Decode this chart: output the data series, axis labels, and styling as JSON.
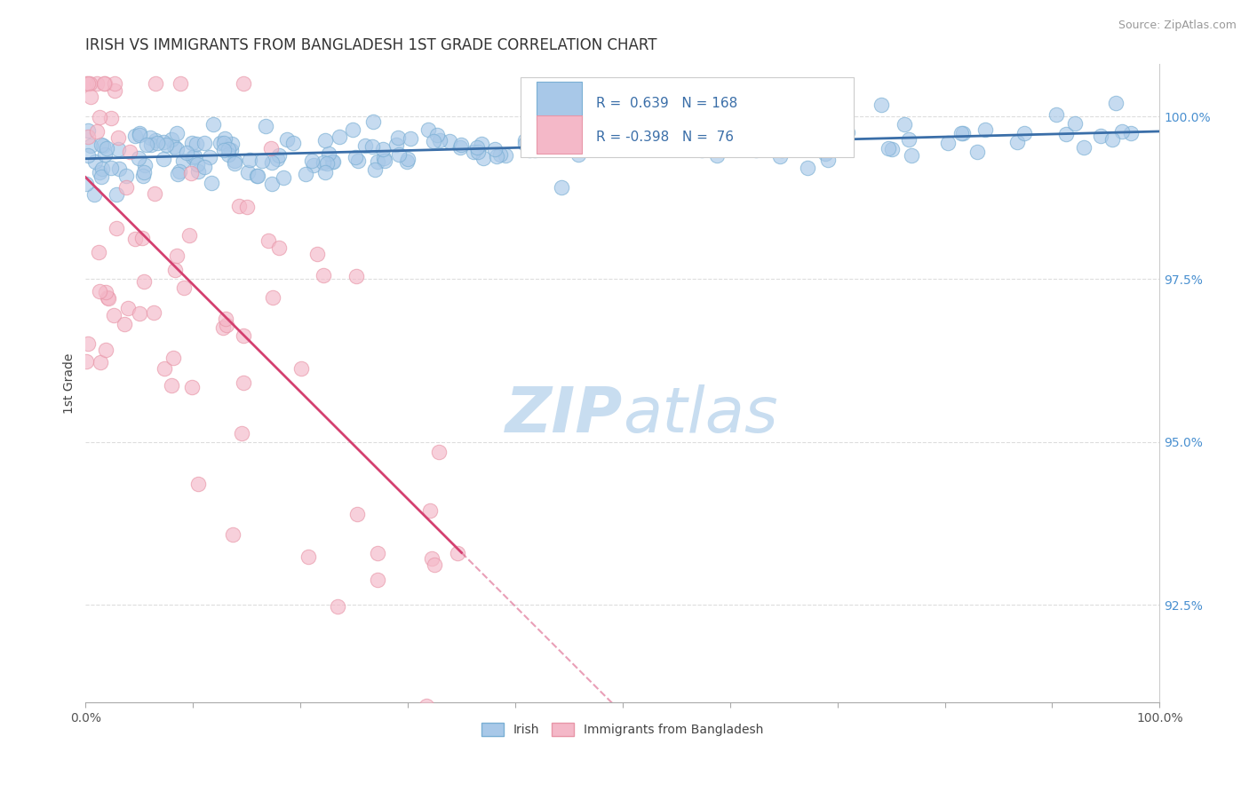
{
  "title": "IRISH VS IMMIGRANTS FROM BANGLADESH 1ST GRADE CORRELATION CHART",
  "source_text": "Source: ZipAtlas.com",
  "ylabel": "1st Grade",
  "watermark_zip": "ZIP",
  "watermark_atlas": "atlas",
  "xlim": [
    0.0,
    100.0
  ],
  "ylim": [
    91.0,
    100.8
  ],
  "yticks": [
    92.5,
    95.0,
    97.5,
    100.0
  ],
  "ytick_labels": [
    "92.5%",
    "95.0%",
    "97.5%",
    "100.0%"
  ],
  "xticks": [
    0,
    10,
    20,
    30,
    40,
    50,
    60,
    70,
    80,
    90,
    100
  ],
  "xtick_labels_shown": {
    "0": "0.0%",
    "100": "100.0%"
  },
  "blue_R": 0.639,
  "blue_N": 168,
  "pink_R": -0.398,
  "pink_N": 76,
  "blue_scatter_color": "#a8c8e8",
  "blue_scatter_edge": "#7aafd4",
  "pink_scatter_color": "#f4b8c8",
  "pink_scatter_edge": "#e896a8",
  "blue_line_color": "#3a6ea8",
  "pink_line_color": "#d44070",
  "legend_label_blue": "Irish",
  "legend_label_pink": "Immigrants from Bangladesh",
  "title_fontsize": 12,
  "axis_label_fontsize": 10,
  "tick_fontsize": 10,
  "source_fontsize": 9,
  "watermark_fontsize_zip": 52,
  "watermark_fontsize_atlas": 52,
  "watermark_color": "#c8ddf0",
  "background_color": "#ffffff",
  "grid_color": "#dddddd",
  "ytick_color": "#4a90d0",
  "xtick_color": "#555555"
}
